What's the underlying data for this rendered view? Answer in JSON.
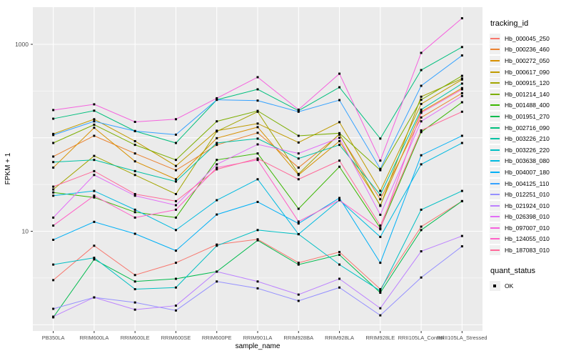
{
  "style": {
    "panel_bg": "#EBEBEB",
    "grid_color": "#FFFFFF",
    "tick_color": "#333333",
    "tick_label_color": "#4D4D4D",
    "axis_title_color": "#000000",
    "point_color": "#000000",
    "legend_key_bg": "#F0F0F0"
  },
  "chart_data": {
    "type": "line",
    "title": "",
    "xlabel": "sample_name",
    "ylabel": "FPKM + 1",
    "y_scale": "log10",
    "grid": true,
    "legend_position": "right",
    "y_tick_values": [
      10,
      1000
    ],
    "y_tick_labels": [
      "10",
      "1000"
    ],
    "y_major_gridlines": [
      1,
      10,
      100,
      1000
    ],
    "y_minor_gridlines": [
      3.162,
      31.62,
      316.2
    ],
    "ylim": [
      0.88,
      2600
    ],
    "categories": [
      "PB350LA",
      "RRIM600LA",
      "RRIM600LE",
      "RRIM600SE",
      "RRIM600PE",
      "RRIM901LA",
      "RRIM928BA",
      "RRIM928LA",
      "RRIM928LE",
      "RRII105LA_Control",
      "RRII105LA_Stressed"
    ],
    "legend_color_title": "tracking_id",
    "legend_shape_title": "quant_status",
    "shape_entries": [
      {
        "label": "OK",
        "shape": "filled-square"
      }
    ],
    "series": [
      {
        "name": "Hb_000045_250",
        "color": "#F8766D",
        "values": [
          3.0,
          7.0,
          3.4,
          4.6,
          7.2,
          8.2,
          4.6,
          6.0,
          2.4,
          11.2,
          21
        ]
      },
      {
        "name": "Hb_000236_460",
        "color": "#EA8331",
        "values": [
          63,
          105,
          68,
          45,
          84,
          113,
          48,
          108,
          22,
          165,
          300
        ]
      },
      {
        "name": "Hb_000272_050",
        "color": "#D89000",
        "values": [
          48,
          128,
          56,
          36,
          99,
          130,
          40,
          92,
          19,
          190,
          340
        ]
      },
      {
        "name": "Hb_000617_090",
        "color": "#C09B00",
        "values": [
          110,
          158,
          92,
          50,
          119,
          142,
          89,
          147,
          27,
          230,
          420
        ]
      },
      {
        "name": "Hb_000915_120",
        "color": "#A3A500",
        "values": [
          28,
          64,
          40,
          25,
          117,
          190,
          41,
          110,
          18.7,
          275,
          430
        ]
      },
      {
        "name": "Hb_001214_140",
        "color": "#7CAE00",
        "values": [
          88,
          138,
          84,
          58,
          150,
          194,
          105,
          112,
          45,
          255,
          460
        ]
      },
      {
        "name": "Hb_001488_400",
        "color": "#39B600",
        "values": [
          26,
          23,
          16,
          14,
          58,
          68,
          17.4,
          49,
          10.8,
          115,
          240
        ]
      },
      {
        "name": "Hb_001951_270",
        "color": "#00BB4E",
        "values": [
          1.2,
          5.0,
          2.9,
          3.1,
          3.7,
          8.0,
          4.4,
          5.6,
          2.2,
          10.3,
          21
        ]
      },
      {
        "name": "Hb_002716_090",
        "color": "#00BF7D",
        "values": [
          160,
          195,
          118,
          88,
          255,
          330,
          195,
          347,
          98,
          530,
          935
        ]
      },
      {
        "name": "Hb_003226_210",
        "color": "#00C1A3",
        "values": [
          55,
          58,
          44,
          34,
          88,
          98,
          60,
          84,
          24.5,
          200,
          380
        ]
      },
      {
        "name": "Hb_003226_220",
        "color": "#00BFC4",
        "values": [
          4.4,
          5.2,
          2.4,
          2.5,
          7.0,
          10.3,
          9.3,
          4.4,
          2.3,
          17,
          27
        ]
      },
      {
        "name": "Hb_003638_080",
        "color": "#00BAE0",
        "values": [
          24,
          27,
          17,
          10.3,
          21.5,
          36,
          9.3,
          21.5,
          8.7,
          52,
          88
        ]
      },
      {
        "name": "Hb_004007_180",
        "color": "#00B0F6",
        "values": [
          8.1,
          12.6,
          9.4,
          6.2,
          15.1,
          20.6,
          12.1,
          22.7,
          4.6,
          65,
          105
        ]
      },
      {
        "name": "Hb_004125_110",
        "color": "#35A2FF",
        "values": [
          107,
          150,
          118,
          108,
          255,
          250,
          190,
          253,
          46.5,
          360,
          760
        ]
      },
      {
        "name": "Hb_012251_010",
        "color": "#9590FF",
        "values": [
          1.48,
          1.96,
          1.73,
          1.42,
          2.9,
          2.45,
          1.8,
          2.5,
          1.26,
          3.2,
          6.9
        ]
      },
      {
        "name": "Hb_021924_010",
        "color": "#BC81FF",
        "values": [
          1.22,
          1.96,
          1.45,
          1.6,
          3.7,
          2.9,
          2.1,
          3.1,
          1.5,
          6.1,
          8.9
        ]
      },
      {
        "name": "Hb_026398_010",
        "color": "#E26EF7",
        "values": [
          14,
          40,
          24,
          19,
          52,
          85,
          68,
          100,
          15,
          150,
          280
        ]
      },
      {
        "name": "Hb_097007_010",
        "color": "#F562DE",
        "values": [
          198,
          228,
          148,
          158,
          265,
          445,
          200,
          485,
          57,
          810,
          1900
        ]
      },
      {
        "name": "Hb_124055_010",
        "color": "#FF61C7",
        "values": [
          11.5,
          24,
          14,
          17,
          48,
          58,
          12.7,
          21.5,
          10.5,
          185,
          330
        ]
      },
      {
        "name": "Hb_187083_010",
        "color": "#FF6A9A",
        "values": [
          30,
          44,
          25,
          21,
          46,
          60,
          36,
          57,
          11.5,
          120,
          190
        ]
      }
    ]
  }
}
